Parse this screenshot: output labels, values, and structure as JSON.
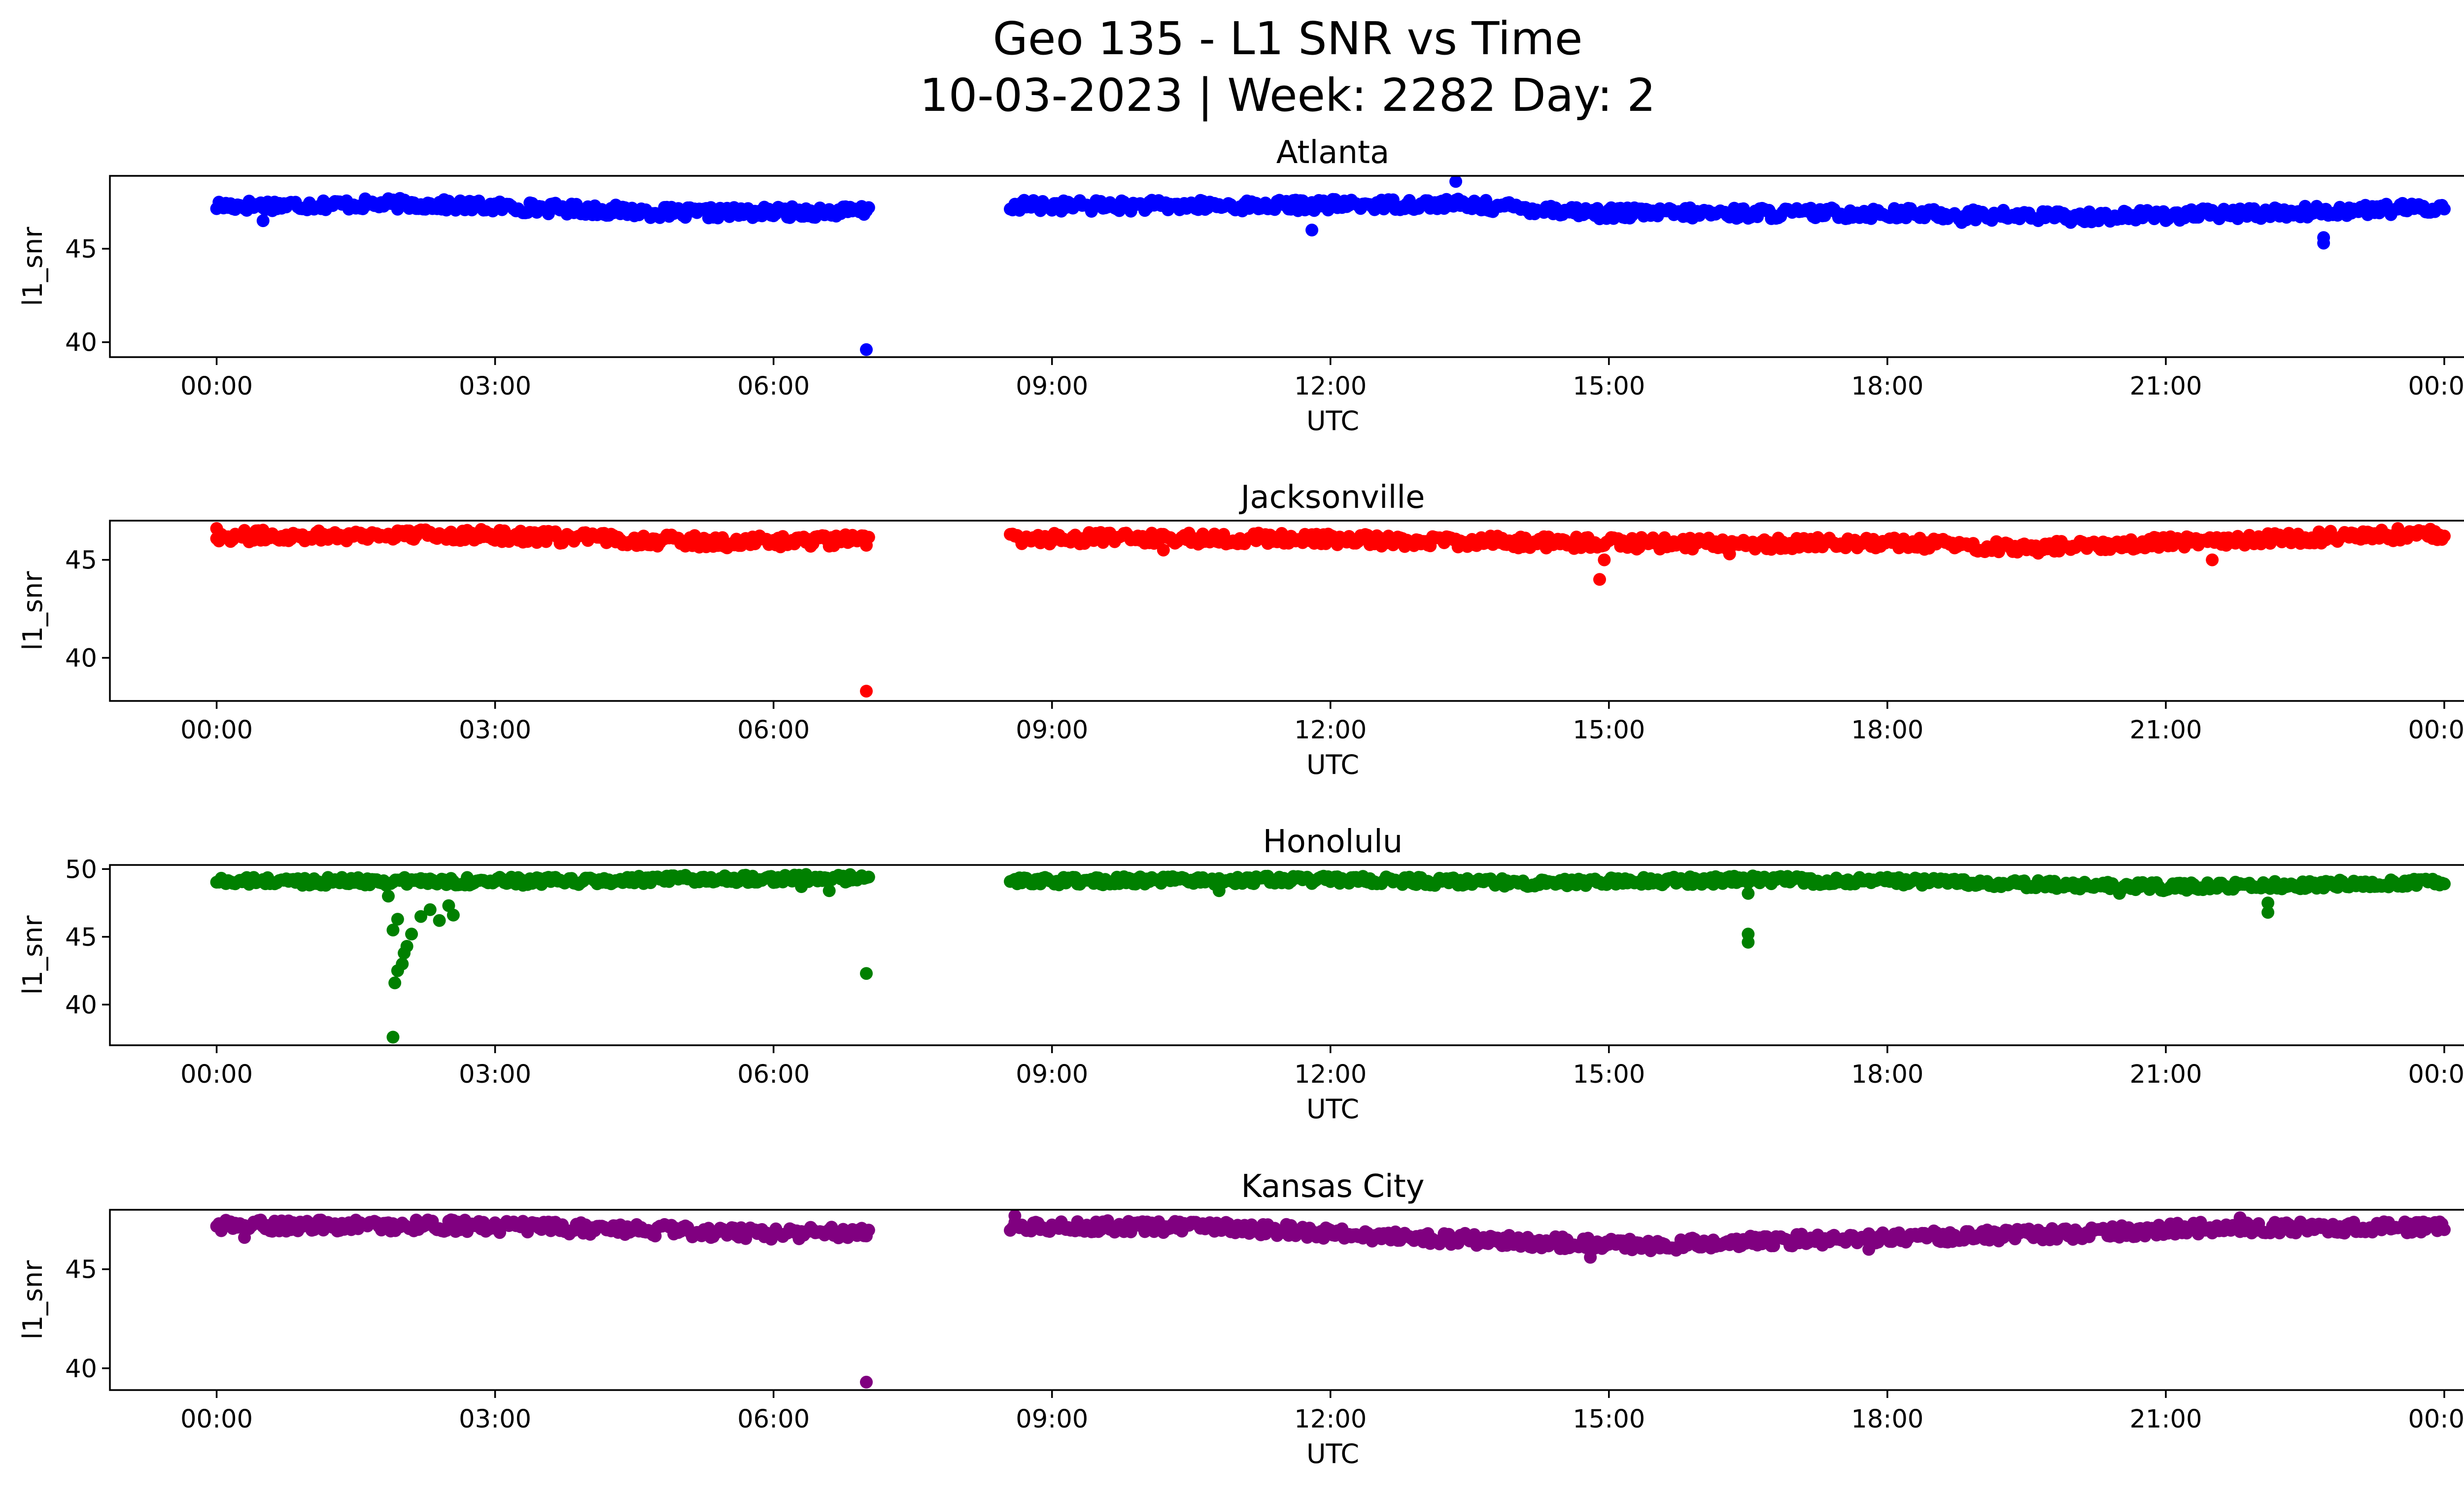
{
  "figure": {
    "title_line1": "Geo 135 - L1 SNR vs Time",
    "title_line2": "10-03-2023 | Week: 2282 Day: 2"
  },
  "chart_data": [
    {
      "type": "scatter",
      "title": "Atlanta",
      "xlabel": "UTC",
      "ylabel": "l1_snr",
      "color": "#0000ff",
      "xlim_hours": [
        -1.15,
        25.2
      ],
      "ylim": [
        39.2,
        48.9
      ],
      "yticks": [
        40,
        45
      ],
      "xtick_labels": [
        "00:00",
        "03:00",
        "06:00",
        "09:00",
        "12:00",
        "15:00",
        "18:00",
        "21:00",
        "00:00"
      ],
      "gap_hours": [
        7.05,
        8.55
      ],
      "base": [
        [
          0.0,
          47.3
        ],
        [
          2.0,
          47.4
        ],
        [
          4.0,
          47.1
        ],
        [
          5.0,
          46.9
        ],
        [
          7.0,
          47.0
        ],
        [
          8.55,
          47.3
        ],
        [
          11.0,
          47.3
        ],
        [
          13.3,
          47.4
        ],
        [
          15.0,
          46.9
        ],
        [
          18.0,
          46.9
        ],
        [
          20.0,
          46.7
        ],
        [
          22.0,
          46.9
        ],
        [
          24.0,
          47.2
        ]
      ],
      "band": 0.3,
      "outliers": [
        [
          7.0,
          39.6
        ],
        [
          11.8,
          46.0
        ],
        [
          13.35,
          48.6
        ],
        [
          22.7,
          45.3
        ],
        [
          22.7,
          45.6
        ],
        [
          14.9,
          46.6
        ],
        [
          0.5,
          46.5
        ],
        [
          18.8,
          46.4
        ]
      ]
    },
    {
      "type": "scatter",
      "title": "Jacksonville",
      "xlabel": "UTC",
      "ylabel": "l1_snr",
      "color": "#ff0000",
      "xlim_hours": [
        -1.15,
        25.2
      ],
      "ylim": [
        37.8,
        47.0
      ],
      "yticks": [
        40,
        45
      ],
      "xtick_labels": [
        "00:00",
        "03:00",
        "06:00",
        "09:00",
        "12:00",
        "15:00",
        "18:00",
        "21:00",
        "00:00"
      ],
      "gap_hours": [
        7.05,
        8.55
      ],
      "base": [
        [
          0.0,
          46.2
        ],
        [
          2.5,
          46.3
        ],
        [
          4.0,
          46.1
        ],
        [
          5.5,
          45.9
        ],
        [
          7.0,
          46.0
        ],
        [
          8.55,
          46.1
        ],
        [
          11.0,
          46.1
        ],
        [
          14.0,
          45.9
        ],
        [
          16.5,
          45.8
        ],
        [
          18.0,
          45.9
        ],
        [
          19.5,
          45.6
        ],
        [
          21.0,
          45.9
        ],
        [
          23.0,
          46.2
        ],
        [
          24.0,
          46.3
        ]
      ],
      "band": 0.3,
      "outliers": [
        [
          7.0,
          38.3
        ],
        [
          14.9,
          44.0
        ],
        [
          14.95,
          45.0
        ],
        [
          21.5,
          45.0
        ],
        [
          10.2,
          45.5
        ],
        [
          16.3,
          45.3
        ],
        [
          0.0,
          46.6
        ],
        [
          23.5,
          46.6
        ]
      ]
    },
    {
      "type": "scatter",
      "title": "Honolulu",
      "xlabel": "UTC",
      "ylabel": "l1_snr",
      "color": "#008000",
      "xlim_hours": [
        -1.15,
        25.2
      ],
      "ylim": [
        37.0,
        50.3
      ],
      "yticks": [
        40,
        45,
        50
      ],
      "xtick_labels": [
        "00:00",
        "03:00",
        "06:00",
        "09:00",
        "12:00",
        "15:00",
        "18:00",
        "21:00",
        "00:00"
      ],
      "gap_hours": [
        7.05,
        8.55
      ],
      "base": [
        [
          0.0,
          49.1
        ],
        [
          1.5,
          49.1
        ],
        [
          2.6,
          49.1
        ],
        [
          4.0,
          49.1
        ],
        [
          5.5,
          49.3
        ],
        [
          6.5,
          49.3
        ],
        [
          7.0,
          49.3
        ],
        [
          8.55,
          49.1
        ],
        [
          12.0,
          49.2
        ],
        [
          14.0,
          49.0
        ],
        [
          16.5,
          49.2
        ],
        [
          18.0,
          49.1
        ],
        [
          19.5,
          48.9
        ],
        [
          21.0,
          48.7
        ],
        [
          22.0,
          48.8
        ],
        [
          24.0,
          49.0
        ]
      ],
      "band": 0.3,
      "outliers": [
        [
          1.9,
          37.6
        ],
        [
          1.92,
          41.6
        ],
        [
          1.95,
          42.5
        ],
        [
          2.0,
          43.0
        ],
        [
          2.02,
          43.8
        ],
        [
          2.05,
          44.3
        ],
        [
          1.9,
          45.5
        ],
        [
          1.95,
          46.3
        ],
        [
          2.1,
          45.2
        ],
        [
          2.2,
          46.5
        ],
        [
          2.3,
          47.0
        ],
        [
          2.4,
          46.2
        ],
        [
          2.5,
          47.3
        ],
        [
          2.55,
          46.6
        ],
        [
          2.2,
          49.3
        ],
        [
          1.85,
          48.0
        ],
        [
          7.0,
          42.3
        ],
        [
          16.5,
          44.6
        ],
        [
          16.5,
          45.2
        ],
        [
          16.5,
          48.2
        ],
        [
          22.1,
          46.8
        ],
        [
          22.1,
          47.5
        ],
        [
          6.6,
          48.4
        ],
        [
          6.3,
          48.7
        ],
        [
          10.8,
          48.4
        ],
        [
          20.5,
          48.2
        ]
      ]
    },
    {
      "type": "scatter",
      "title": "Kansas City",
      "xlabel": "UTC",
      "ylabel": "l1_snr",
      "color": "#800080",
      "xlim_hours": [
        -1.15,
        25.2
      ],
      "ylim": [
        38.9,
        48.0
      ],
      "yticks": [
        40,
        45
      ],
      "xtick_labels": [
        "00:00",
        "03:00",
        "06:00",
        "09:00",
        "12:00",
        "15:00",
        "18:00",
        "21:00",
        "00:00"
      ],
      "gap_hours": [
        7.05,
        8.55
      ],
      "base": [
        [
          0.0,
          47.2
        ],
        [
          2.5,
          47.2
        ],
        [
          4.5,
          47.0
        ],
        [
          6.0,
          46.8
        ],
        [
          7.0,
          46.9
        ],
        [
          8.55,
          47.2
        ],
        [
          11.0,
          47.1
        ],
        [
          12.5,
          46.7
        ],
        [
          14.0,
          46.4
        ],
        [
          15.5,
          46.2
        ],
        [
          16.5,
          46.4
        ],
        [
          18.0,
          46.6
        ],
        [
          20.0,
          46.8
        ],
        [
          21.5,
          47.1
        ],
        [
          24.0,
          47.1
        ]
      ],
      "band": 0.3,
      "outliers": [
        [
          7.0,
          39.3
        ],
        [
          14.8,
          45.6
        ],
        [
          0.3,
          46.6
        ],
        [
          17.8,
          46.0
        ],
        [
          8.6,
          47.7
        ],
        [
          21.8,
          47.6
        ]
      ]
    }
  ]
}
